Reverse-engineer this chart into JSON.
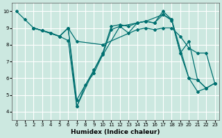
{
  "xlabel": "Humidex (Indice chaleur)",
  "bg_color": "#cce8e0",
  "grid_color": "#ffffff",
  "line_color": "#007070",
  "marker": "D",
  "markersize": 2.0,
  "linewidth": 0.9,
  "xlim": [
    -0.5,
    23.5
  ],
  "ylim": [
    3.5,
    10.5
  ],
  "xticks": [
    0,
    1,
    2,
    3,
    4,
    5,
    6,
    7,
    8,
    9,
    10,
    11,
    12,
    13,
    14,
    15,
    16,
    17,
    18,
    19,
    20,
    21,
    22,
    23
  ],
  "yticks": [
    4,
    5,
    6,
    7,
    8,
    9,
    10
  ],
  "series": [
    {
      "x": [
        0,
        1,
        2,
        3,
        4,
        5,
        6,
        7,
        8,
        9,
        10,
        11,
        12,
        13,
        14,
        15,
        16,
        17,
        18,
        19,
        20,
        21,
        22,
        23
      ],
      "y": [
        10,
        9.5,
        9.0,
        8.85,
        8.7,
        8.5,
        8.25,
        4.3,
        5.6,
        6.3,
        7.4,
        8.9,
        9.1,
        8.7,
        9.3,
        9.4,
        9.3,
        10.0,
        9.5,
        7.5,
        6.0,
        5.2,
        5.4,
        5.7
      ]
    },
    {
      "x": [
        2,
        3,
        4,
        5,
        6,
        7,
        9,
        10,
        11,
        12,
        13,
        14,
        15,
        16,
        17,
        18,
        19,
        20,
        21,
        22
      ],
      "y": [
        9.0,
        8.85,
        8.7,
        8.5,
        9.0,
        4.7,
        6.5,
        7.5,
        9.1,
        9.2,
        9.1,
        9.3,
        9.4,
        9.3,
        9.8,
        9.45,
        7.5,
        8.2,
        5.9,
        5.4
      ]
    },
    {
      "x": [
        2,
        3,
        5,
        6,
        7,
        10,
        14,
        15,
        16,
        17,
        18,
        19,
        20,
        21,
        22,
        23
      ],
      "y": [
        9.0,
        8.85,
        8.5,
        9.0,
        8.2,
        8.0,
        8.9,
        9.0,
        8.9,
        9.0,
        9.0,
        8.5,
        7.8,
        7.5,
        7.5,
        5.7
      ]
    },
    {
      "x": [
        2,
        5,
        6,
        7,
        9,
        12,
        14,
        15,
        17,
        18,
        20,
        21,
        22,
        23
      ],
      "y": [
        9.0,
        8.5,
        9.0,
        4.3,
        6.5,
        9.1,
        9.3,
        9.4,
        9.8,
        9.5,
        6.0,
        5.9,
        5.4,
        5.7
      ]
    }
  ]
}
